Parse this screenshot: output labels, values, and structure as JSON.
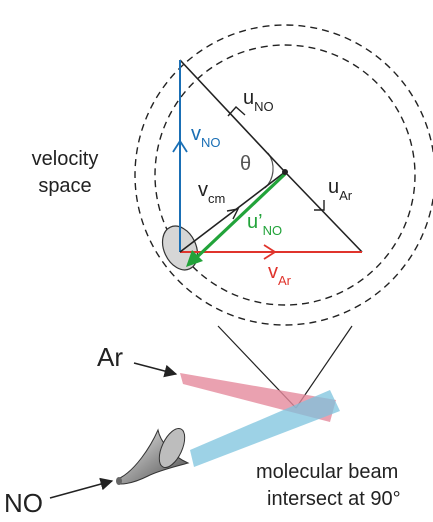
{
  "labels": {
    "velocity_space_line1": "velocity",
    "velocity_space_line2": "space",
    "theta": "θ",
    "u_no_main": "u",
    "u_no_sub": "NO",
    "u_ar_main": "u",
    "u_ar_sub": "Ar",
    "v_no_main": "v",
    "v_no_sub": "NO",
    "v_cm_main": "v",
    "v_cm_sub": "cm",
    "u_prime_no_main": "u’",
    "u_prime_no_sub": "NO",
    "v_ar_main": "v",
    "v_ar_sub": "Ar",
    "beam_ar": "Ar",
    "beam_no": "NO",
    "caption_line1": "molecular beam",
    "caption_line2": "intersect at 90°"
  },
  "colors": {
    "v_no": "#1a6fb5",
    "v_ar": "#e0342c",
    "u_prime_no": "#22a33a",
    "ar_beam": "#e58a9c",
    "no_beam": "#7cc3de",
    "ink": "#222222"
  },
  "icons": {
    "nozzle": "funnel-nozzle-icon",
    "detector_ellipse": "ellipse-spot-icon"
  }
}
